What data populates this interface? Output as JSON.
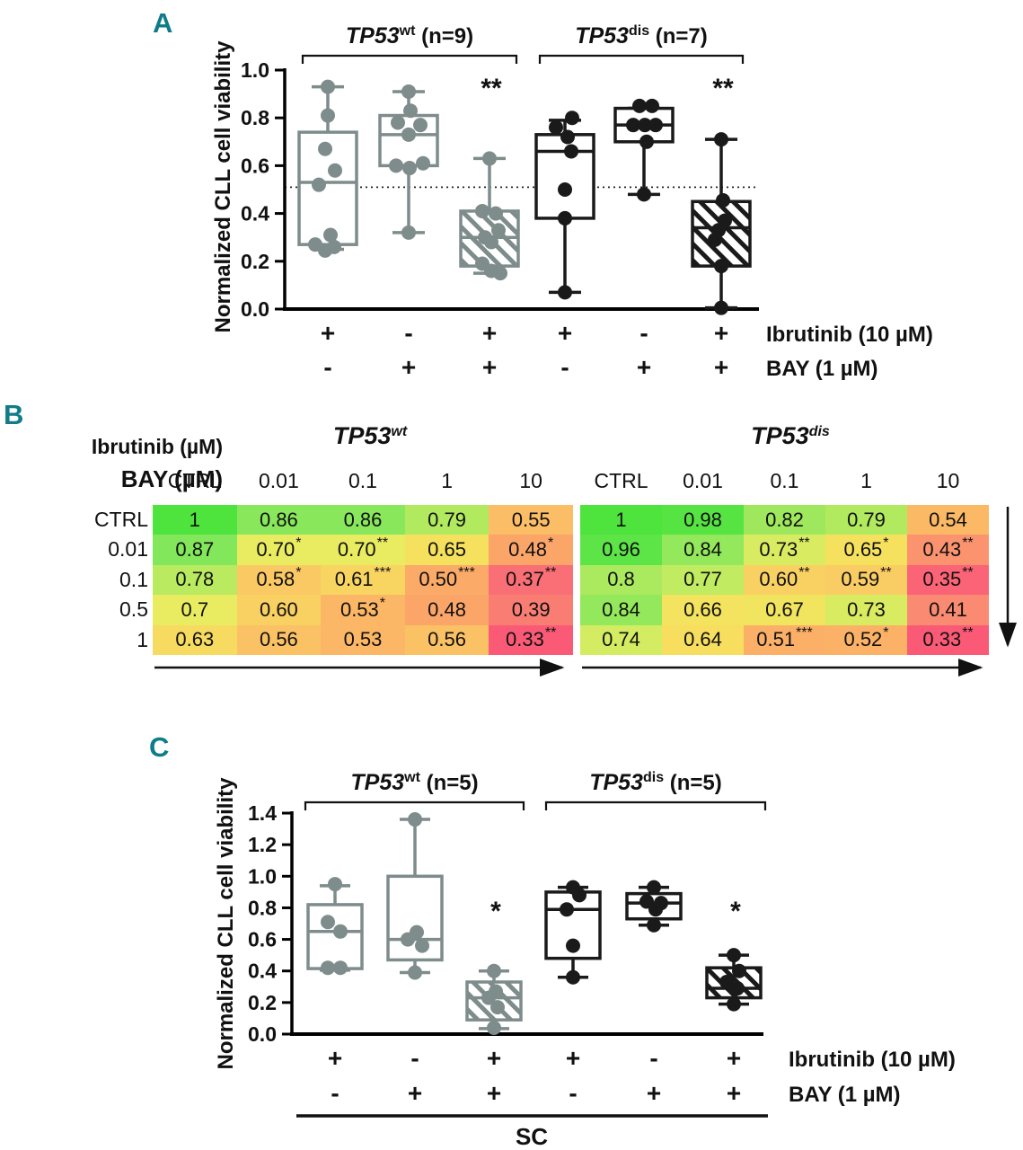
{
  "figure": {
    "panel_labels": {
      "a": "A",
      "b": "B",
      "c": "C"
    },
    "colors": {
      "teal": "#0E7D89",
      "gray": "#7E8C8C",
      "black": "#1A1A1A"
    }
  },
  "chart_data": [
    {
      "panel": "A",
      "type": "boxplot",
      "ylabel": "Normalized CLL cell viability",
      "ylim": [
        0,
        1.0
      ],
      "yticks": [
        "0.0",
        "0.2",
        "0.4",
        "0.6",
        "0.8",
        "1.0"
      ],
      "ref_line": 0.51,
      "groups": [
        {
          "title": {
            "gene": "TP53",
            "sup": "wt",
            "suffix": " (n=9)"
          }
        },
        {
          "title": {
            "gene": "TP53",
            "sup": "dis",
            "suffix": " (n=7)"
          }
        }
      ],
      "condition_rows": [
        {
          "label": "Ibrutinib (10 µM)",
          "signs": [
            "+",
            "-",
            "+",
            "+",
            "-",
            "+"
          ]
        },
        {
          "label": "BAY (1 µM)",
          "signs": [
            "-",
            "+",
            "+",
            "-",
            "+",
            "+"
          ]
        }
      ],
      "boxes": [
        {
          "group": 0,
          "style": "gray",
          "hatch": false,
          "lo": 0.25,
          "q1": 0.27,
          "med": 0.53,
          "q3": 0.74,
          "hi": 0.93,
          "sig": "",
          "points": [
            [
              0.93,
              0
            ],
            [
              0.81,
              0
            ],
            [
              0.67,
              -3
            ],
            [
              0.58,
              8
            ],
            [
              0.52,
              -10
            ],
            [
              0.31,
              3
            ],
            [
              0.27,
              -14
            ],
            [
              0.26,
              7
            ],
            [
              0.245,
              -3
            ]
          ]
        },
        {
          "group": 0,
          "style": "gray",
          "hatch": false,
          "lo": 0.32,
          "q1": 0.6,
          "med": 0.73,
          "q3": 0.81,
          "hi": 0.91,
          "sig": "",
          "points": [
            [
              0.91,
              0
            ],
            [
              0.83,
              2
            ],
            [
              0.78,
              -12
            ],
            [
              0.77,
              13
            ],
            [
              0.73,
              0
            ],
            [
              0.61,
              16
            ],
            [
              0.6,
              -14
            ],
            [
              0.59,
              1
            ],
            [
              0.32,
              0
            ]
          ]
        },
        {
          "group": 0,
          "style": "gray",
          "hatch": true,
          "lo": 0.15,
          "q1": 0.18,
          "med": 0.3,
          "q3": 0.41,
          "hi": 0.63,
          "sig": "**",
          "points": [
            [
              0.63,
              0
            ],
            [
              0.41,
              -8
            ],
            [
              0.4,
              7
            ],
            [
              0.33,
              10
            ],
            [
              0.3,
              -5
            ],
            [
              0.28,
              2
            ],
            [
              0.19,
              -8
            ],
            [
              0.16,
              2
            ],
            [
              0.15,
              12
            ]
          ]
        },
        {
          "group": 1,
          "style": "black",
          "hatch": false,
          "lo": 0.07,
          "q1": 0.38,
          "med": 0.66,
          "q3": 0.73,
          "hi": 0.79,
          "sig": "",
          "points": [
            [
              0.8,
              8
            ],
            [
              0.76,
              -10
            ],
            [
              0.72,
              3
            ],
            [
              0.66,
              7
            ],
            [
              0.5,
              0
            ],
            [
              0.38,
              0
            ],
            [
              0.07,
              0
            ]
          ]
        },
        {
          "group": 1,
          "style": "black",
          "hatch": false,
          "lo": 0.48,
          "q1": 0.7,
          "med": 0.77,
          "q3": 0.84,
          "hi": 0.84,
          "sig": "",
          "points": [
            [
              0.85,
              -5
            ],
            [
              0.85,
              9
            ],
            [
              0.77,
              -12
            ],
            [
              0.77,
              1
            ],
            [
              0.77,
              13
            ],
            [
              0.7,
              3
            ],
            [
              0.48,
              0
            ]
          ]
        },
        {
          "group": 1,
          "style": "black",
          "hatch": true,
          "lo": 0.005,
          "q1": 0.18,
          "med": 0.34,
          "q3": 0.45,
          "hi": 0.71,
          "sig": "**",
          "points": [
            [
              0.71,
              0
            ],
            [
              0.455,
              2
            ],
            [
              0.37,
              4
            ],
            [
              0.33,
              -3
            ],
            [
              0.29,
              -7
            ],
            [
              0.18,
              0
            ],
            [
              0.005,
              0
            ]
          ]
        }
      ]
    },
    {
      "panel": "B",
      "type": "heatmap",
      "col_axis_label": "Ibrutinib (µM)",
      "row_axis_label": "BAY (µM)",
      "col_headers": [
        "CTRL",
        "0.01",
        "0.1",
        "1",
        "10"
      ],
      "row_headers": [
        "CTRL",
        "0.01",
        "0.1",
        "0.5",
        "1"
      ],
      "tables": [
        {
          "title": {
            "gene": "TP53",
            "sup": "wt"
          },
          "cells": [
            [
              {
                "v": "1",
                "sig": ""
              },
              {
                "v": "0.86",
                "sig": ""
              },
              {
                "v": "0.86",
                "sig": ""
              },
              {
                "v": "0.79",
                "sig": ""
              },
              {
                "v": "0.55",
                "sig": ""
              }
            ],
            [
              {
                "v": "0.87",
                "sig": ""
              },
              {
                "v": "0.70",
                "sig": "*"
              },
              {
                "v": "0.70",
                "sig": "**"
              },
              {
                "v": "0.65",
                "sig": ""
              },
              {
                "v": "0.48",
                "sig": "*"
              }
            ],
            [
              {
                "v": "0.78",
                "sig": ""
              },
              {
                "v": "0.58",
                "sig": "*"
              },
              {
                "v": "0.61",
                "sig": "***"
              },
              {
                "v": "0.50",
                "sig": "***"
              },
              {
                "v": "0.37",
                "sig": "**"
              }
            ],
            [
              {
                "v": "0.7",
                "sig": ""
              },
              {
                "v": "0.60",
                "sig": ""
              },
              {
                "v": "0.53",
                "sig": "*"
              },
              {
                "v": "0.48",
                "sig": ""
              },
              {
                "v": "0.39",
                "sig": ""
              }
            ],
            [
              {
                "v": "0.63",
                "sig": ""
              },
              {
                "v": "0.56",
                "sig": ""
              },
              {
                "v": "0.53",
                "sig": ""
              },
              {
                "v": "0.56",
                "sig": ""
              },
              {
                "v": "0.33",
                "sig": "**"
              }
            ]
          ]
        },
        {
          "title": {
            "gene": "TP53",
            "sup": "dis"
          },
          "cells": [
            [
              {
                "v": "1",
                "sig": ""
              },
              {
                "v": "0.98",
                "sig": ""
              },
              {
                "v": "0.82",
                "sig": ""
              },
              {
                "v": "0.79",
                "sig": ""
              },
              {
                "v": "0.54",
                "sig": ""
              }
            ],
            [
              {
                "v": "0.96",
                "sig": ""
              },
              {
                "v": "0.84",
                "sig": ""
              },
              {
                "v": "0.73",
                "sig": "**"
              },
              {
                "v": "0.65",
                "sig": "*"
              },
              {
                "v": "0.43",
                "sig": "**"
              }
            ],
            [
              {
                "v": "0.8",
                "sig": ""
              },
              {
                "v": "0.77",
                "sig": ""
              },
              {
                "v": "0.60",
                "sig": "**"
              },
              {
                "v": "0.59",
                "sig": "**"
              },
              {
                "v": "0.35",
                "sig": "**"
              }
            ],
            [
              {
                "v": "0.84",
                "sig": ""
              },
              {
                "v": "0.66",
                "sig": ""
              },
              {
                "v": "0.67",
                "sig": ""
              },
              {
                "v": "0.73",
                "sig": ""
              },
              {
                "v": "0.41",
                "sig": ""
              }
            ],
            [
              {
                "v": "0.74",
                "sig": ""
              },
              {
                "v": "0.64",
                "sig": ""
              },
              {
                "v": "0.51",
                "sig": "***"
              },
              {
                "v": "0.52",
                "sig": "*"
              },
              {
                "v": "0.33",
                "sig": "**"
              }
            ]
          ]
        }
      ],
      "colormap": [
        [
          0.33,
          "#FA5A76"
        ],
        [
          0.37,
          "#F96F75"
        ],
        [
          0.41,
          "#FB8A72"
        ],
        [
          0.45,
          "#FB9C6C"
        ],
        [
          0.5,
          "#FBAB67"
        ],
        [
          0.55,
          "#FBBD66"
        ],
        [
          0.6,
          "#F9D162"
        ],
        [
          0.65,
          "#F6E15E"
        ],
        [
          0.7,
          "#E9EC60"
        ],
        [
          0.75,
          "#CFEC62"
        ],
        [
          0.8,
          "#ABE95E"
        ],
        [
          0.87,
          "#82E75A"
        ],
        [
          0.95,
          "#60E44A"
        ],
        [
          1.0,
          "#4FE43D"
        ]
      ]
    },
    {
      "panel": "C",
      "type": "boxplot",
      "ylabel": "Normalized CLL cell viability",
      "ylim": [
        0,
        1.4
      ],
      "yticks": [
        "0.0",
        "0.2",
        "0.4",
        "0.6",
        "0.8",
        "1.0",
        "1.2",
        "1.4"
      ],
      "groups": [
        {
          "title": {
            "gene": "TP53",
            "sup": "wt",
            "suffix": " (n=5)"
          }
        },
        {
          "title": {
            "gene": "TP53",
            "sup": "dis",
            "suffix": " (n=5)"
          }
        }
      ],
      "condition_rows": [
        {
          "label": "Ibrutinib (10 µM)",
          "signs": [
            "+",
            "-",
            "+",
            "+",
            "-",
            "+"
          ]
        },
        {
          "label": "BAY (1 µM)",
          "signs": [
            "-",
            "+",
            "+",
            "-",
            "+",
            "+"
          ]
        }
      ],
      "footer_label": "SC",
      "boxes": [
        {
          "group": 0,
          "style": "gray",
          "hatch": false,
          "lo": 0.405,
          "q1": 0.415,
          "med": 0.65,
          "q3": 0.82,
          "hi": 0.94,
          "sig": "",
          "points": [
            [
              0.95,
              0
            ],
            [
              0.71,
              -8
            ],
            [
              0.65,
              6
            ],
            [
              0.42,
              -8
            ],
            [
              0.42,
              6
            ]
          ]
        },
        {
          "group": 0,
          "style": "gray",
          "hatch": false,
          "lo": 0.39,
          "q1": 0.47,
          "med": 0.6,
          "q3": 1.0,
          "hi": 1.36,
          "sig": "",
          "points": [
            [
              1.36,
              0
            ],
            [
              0.645,
              2
            ],
            [
              0.6,
              -8
            ],
            [
              0.56,
              8
            ],
            [
              0.39,
              0
            ]
          ]
        },
        {
          "group": 0,
          "style": "gray",
          "hatch": true,
          "lo": 0.035,
          "q1": 0.09,
          "med": 0.23,
          "q3": 0.33,
          "hi": 0.4,
          "sig": "*",
          "points": [
            [
              0.4,
              0
            ],
            [
              0.27,
              2
            ],
            [
              0.23,
              -6
            ],
            [
              0.17,
              4
            ],
            [
              0.04,
              0
            ]
          ]
        },
        {
          "group": 1,
          "style": "black",
          "hatch": false,
          "lo": 0.36,
          "q1": 0.48,
          "med": 0.79,
          "q3": 0.9,
          "hi": 0.93,
          "sig": "",
          "points": [
            [
              0.93,
              0
            ],
            [
              0.88,
              7
            ],
            [
              0.79,
              -7
            ],
            [
              0.56,
              0
            ],
            [
              0.36,
              0
            ]
          ]
        },
        {
          "group": 1,
          "style": "black",
          "hatch": false,
          "lo": 0.69,
          "q1": 0.73,
          "med": 0.83,
          "q3": 0.89,
          "hi": 0.93,
          "sig": "",
          "points": [
            [
              0.93,
              0
            ],
            [
              0.84,
              -8
            ],
            [
              0.83,
              8
            ],
            [
              0.79,
              2
            ],
            [
              0.69,
              0
            ]
          ]
        },
        {
          "group": 1,
          "style": "black",
          "hatch": true,
          "lo": 0.19,
          "q1": 0.23,
          "med": 0.29,
          "q3": 0.42,
          "hi": 0.5,
          "sig": "*",
          "points": [
            [
              0.5,
              0
            ],
            [
              0.4,
              6
            ],
            [
              0.33,
              -8
            ],
            [
              0.29,
              4
            ],
            [
              0.19,
              0
            ]
          ]
        }
      ]
    }
  ]
}
